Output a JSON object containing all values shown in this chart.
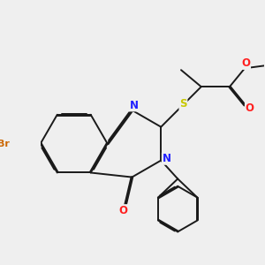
{
  "bg_color": "#efefef",
  "line_color": "#1a1a1a",
  "N_color": "#2020ff",
  "O_color": "#ff2020",
  "S_color": "#c8c800",
  "Br_color": "#cc6600",
  "bond_lw": 1.4,
  "xlim": [
    -1.5,
    8.5
  ],
  "ylim": [
    -4.5,
    5.5
  ],
  "figsize": [
    3.0,
    3.0
  ],
  "dpi": 100
}
